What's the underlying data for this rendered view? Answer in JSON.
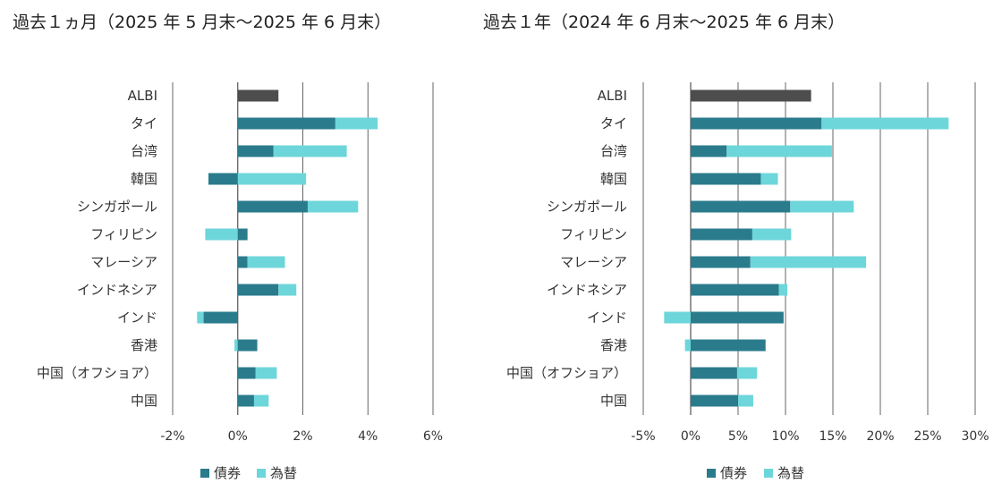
{
  "colors": {
    "bond": "#2a7b8c",
    "fx": "#6dd6da",
    "albi": "#4d4d4d",
    "grid": "#555555",
    "zero": "#444444"
  },
  "legend": {
    "bond_label": "債券",
    "fx_label": "為替"
  },
  "chart_data": [
    {
      "type": "bar",
      "orientation": "horizontal",
      "stacked": true,
      "title": "過去１ヵ月（2025 年 5 月末〜2025 年 6 月末）",
      "categories": [
        "ALBI",
        "タイ",
        "台湾",
        "韓国",
        "シンガポール",
        "フィリピン",
        "マレーシア",
        "インドネシア",
        "インド",
        "香港",
        "中国（オフショア）",
        "中国"
      ],
      "series": [
        {
          "name": "債券",
          "values": [
            1.25,
            3.0,
            1.1,
            -0.9,
            2.15,
            0.3,
            0.3,
            1.25,
            -1.05,
            0.6,
            0.55,
            0.5
          ]
        },
        {
          "name": "為替",
          "values": [
            0,
            1.3,
            2.25,
            2.1,
            1.55,
            -1.0,
            1.15,
            0.55,
            -0.2,
            -0.1,
            0.65,
            0.45
          ]
        }
      ],
      "xlim": [
        -2,
        6
      ],
      "xticks": [
        -2,
        0,
        2,
        4,
        6
      ],
      "tick_labels": [
        "-2%",
        "0%",
        "2%",
        "4%",
        "6%"
      ],
      "grid": true
    },
    {
      "type": "bar",
      "orientation": "horizontal",
      "stacked": true,
      "title": "過去１年（2024 年 6 月末〜2025 年 6 月末）",
      "categories": [
        "ALBI",
        "タイ",
        "台湾",
        "韓国",
        "シンガポール",
        "フィリピン",
        "マレーシア",
        "インドネシア",
        "インド",
        "香港",
        "中国（オフショア）",
        "中国"
      ],
      "series": [
        {
          "name": "債券",
          "values": [
            12.7,
            13.8,
            3.8,
            7.4,
            10.5,
            6.5,
            6.3,
            9.3,
            9.8,
            7.9,
            4.9,
            5.0
          ]
        },
        {
          "name": "為替",
          "values": [
            0,
            13.4,
            11.1,
            1.8,
            6.7,
            4.1,
            12.2,
            0.9,
            -2.8,
            -0.6,
            2.1,
            1.6
          ]
        }
      ],
      "xlim": [
        -5,
        30
      ],
      "xticks": [
        -5,
        0,
        5,
        10,
        15,
        20,
        25,
        30
      ],
      "tick_labels": [
        "-5%",
        "0%",
        "5%",
        "10%",
        "15%",
        "20%",
        "25%",
        "30%"
      ],
      "grid": true
    }
  ]
}
